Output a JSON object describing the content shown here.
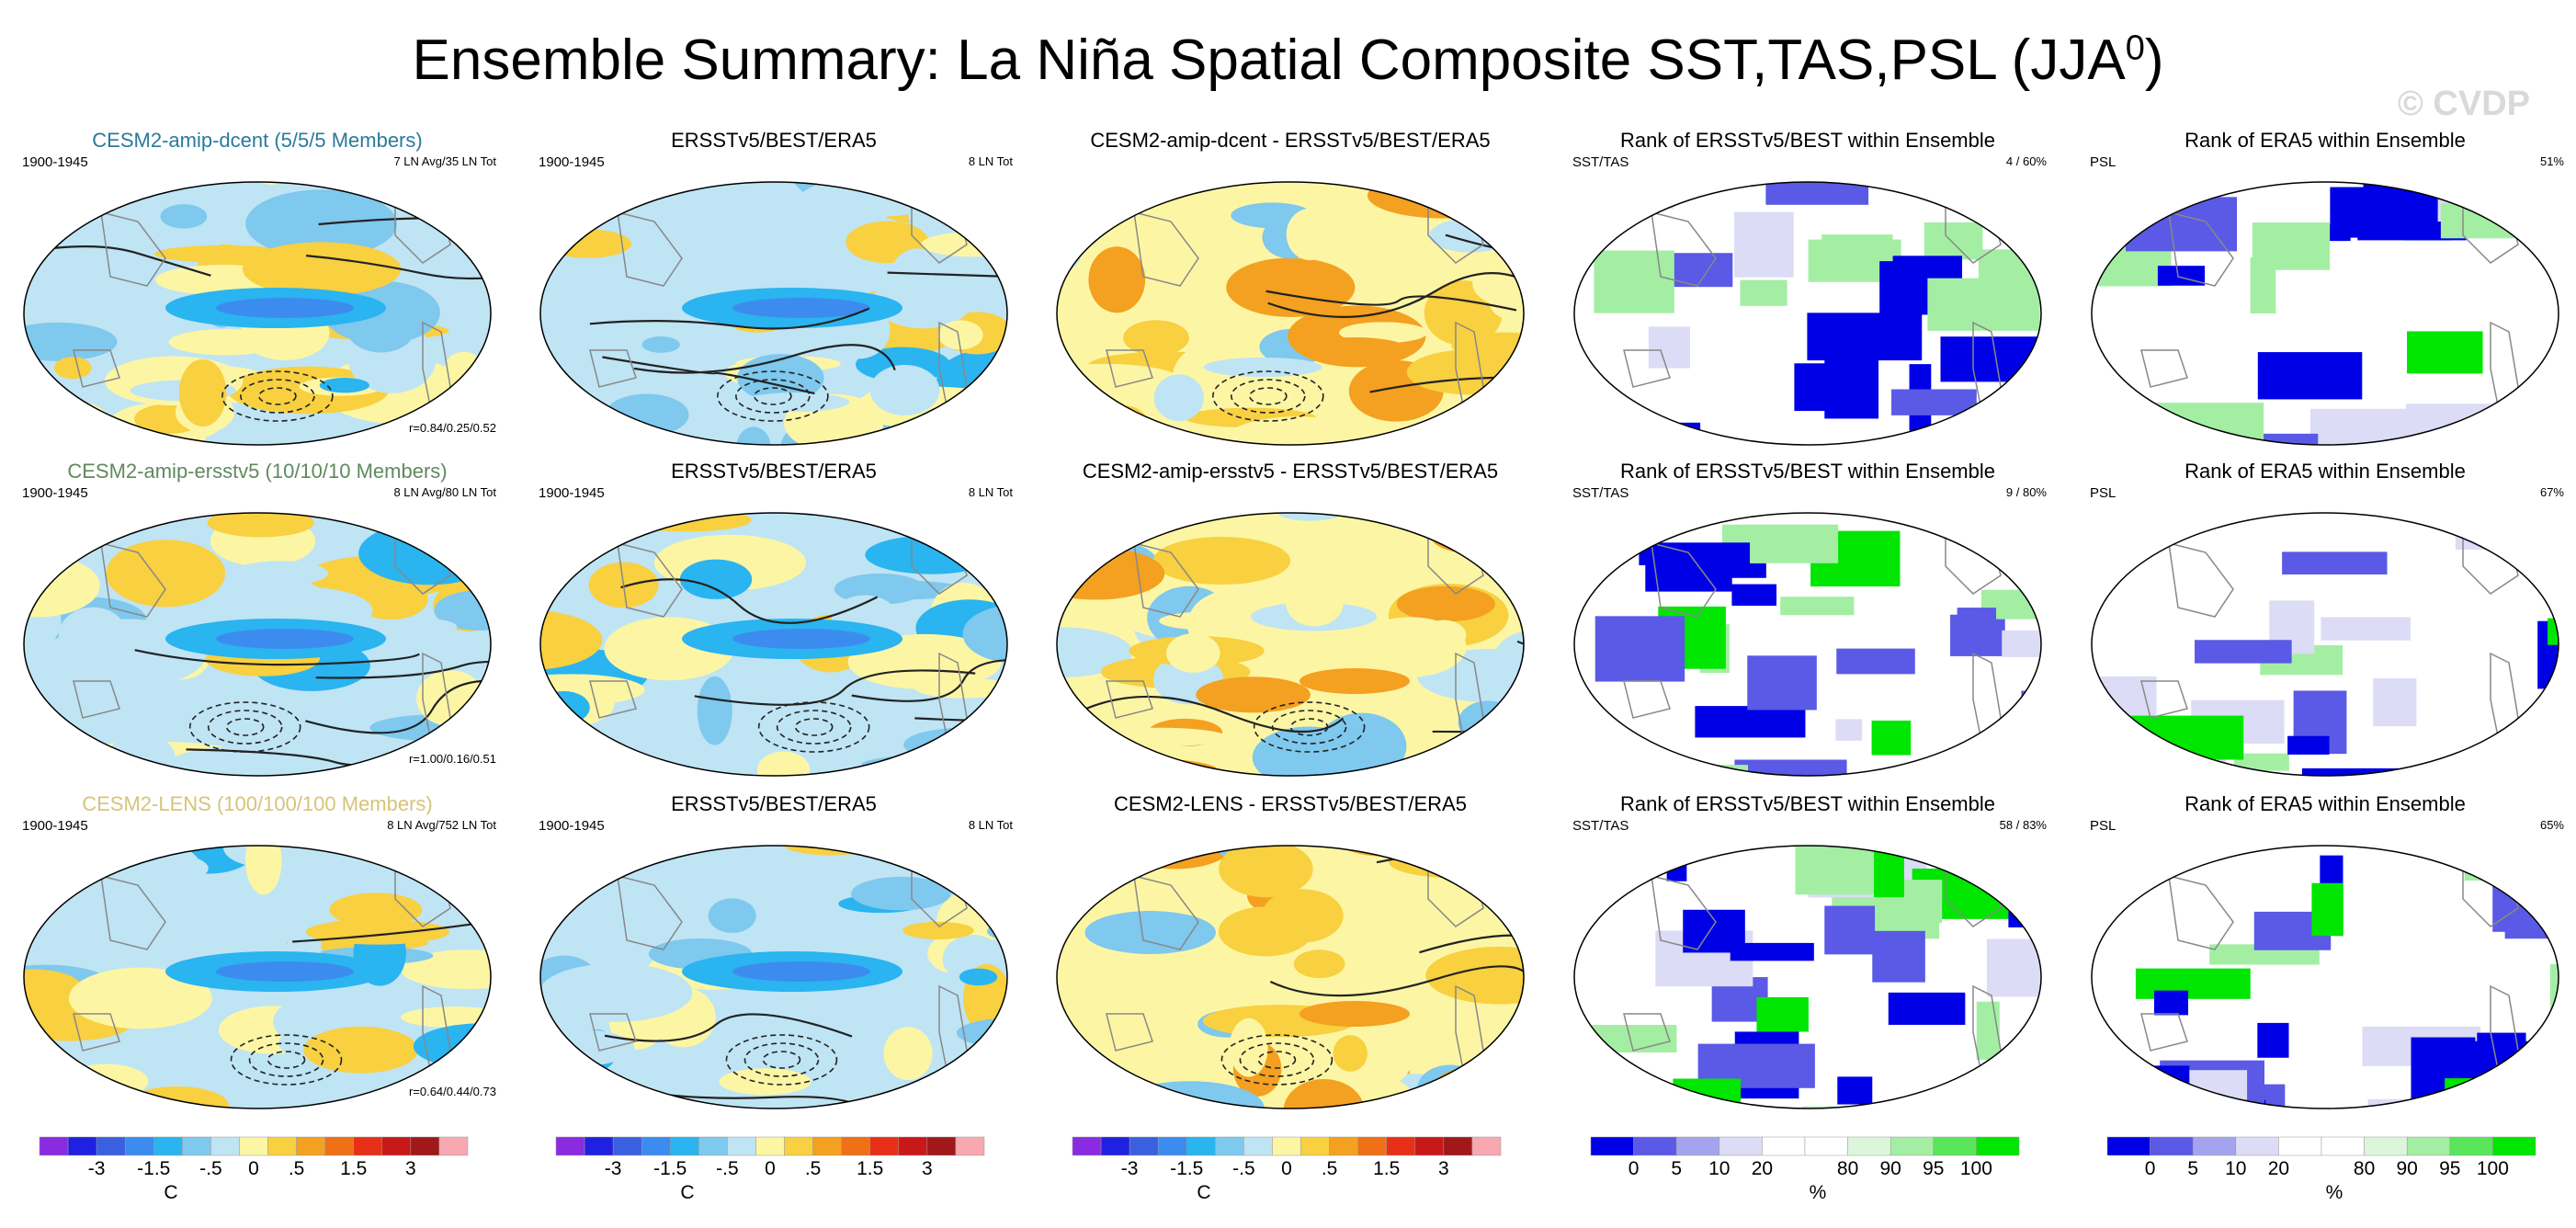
{
  "figure": {
    "title": "Ensemble Summary: La Niña Spatial Composite SST,TAS,PSL (JJA",
    "title_sup": "0",
    "title_close": ")",
    "watermark": "© CVDP"
  },
  "rows": [
    {
      "panels": [
        {
          "title": "CESM2-amip-dcent (5/5/5 Members)",
          "title_color": "#2b7a9b",
          "left": "1900-1945",
          "right": "7 LN Avg/35 LN Tot",
          "corr": "r=0.84/0.25/0.52",
          "kind": "anom",
          "pattern": 1
        },
        {
          "title": "ERSSTv5/BEST/ERA5",
          "title_color": "#000000",
          "left": "1900-1945",
          "right": "8 LN Tot",
          "corr": "",
          "kind": "anom",
          "pattern": 2
        },
        {
          "title": "CESM2-amip-dcent - ERSSTv5/BEST/ERA5",
          "title_color": "#000000",
          "left": "",
          "right": "",
          "corr": "",
          "kind": "diff",
          "pattern": 3
        },
        {
          "title": "Rank of ERSSTv5/BEST within Ensemble",
          "title_color": "#000000",
          "left": "SST/TAS",
          "right": "4 /  60%",
          "corr": "",
          "kind": "rank",
          "pattern": 4
        },
        {
          "title": "Rank of ERA5 within Ensemble",
          "title_color": "#000000",
          "left": "PSL",
          "right": "51%",
          "corr": "",
          "kind": "rank",
          "pattern": 5
        }
      ]
    },
    {
      "panels": [
        {
          "title": "CESM2-amip-ersstv5 (10/10/10 Members)",
          "title_color": "#5f8a5f",
          "left": "1900-1945",
          "right": "8 LN Avg/80 LN Tot",
          "corr": "r=1.00/0.16/0.51",
          "kind": "anom",
          "pattern": 6
        },
        {
          "title": "ERSSTv5/BEST/ERA5",
          "title_color": "#000000",
          "left": "1900-1945",
          "right": "8 LN Tot",
          "corr": "",
          "kind": "anom",
          "pattern": 7
        },
        {
          "title": "CESM2-amip-ersstv5 - ERSSTv5/BEST/ERA5",
          "title_color": "#000000",
          "left": "",
          "right": "",
          "corr": "",
          "kind": "diff",
          "pattern": 8
        },
        {
          "title": "Rank of ERSSTv5/BEST within Ensemble",
          "title_color": "#000000",
          "left": "SST/TAS",
          "right": "9 /  80%",
          "corr": "",
          "kind": "rank",
          "pattern": 9
        },
        {
          "title": "Rank of ERA5 within Ensemble",
          "title_color": "#000000",
          "left": "PSL",
          "right": "67%",
          "corr": "",
          "kind": "rank",
          "pattern": 10
        }
      ]
    },
    {
      "panels": [
        {
          "title": "CESM2-LENS (100/100/100 Members)",
          "title_color": "#d6c47a",
          "left": "1900-1945",
          "right": "8 LN Avg/752 LN Tot",
          "corr": "r=0.64/0.44/0.73",
          "kind": "anom",
          "pattern": 11
        },
        {
          "title": "ERSSTv5/BEST/ERA5",
          "title_color": "#000000",
          "left": "1900-1945",
          "right": "8 LN Tot",
          "corr": "",
          "kind": "anom",
          "pattern": 12
        },
        {
          "title": "CESM2-LENS - ERSSTv5/BEST/ERA5",
          "title_color": "#000000",
          "left": "",
          "right": "",
          "corr": "",
          "kind": "diff",
          "pattern": 13
        },
        {
          "title": "Rank of ERSSTv5/BEST within Ensemble",
          "title_color": "#000000",
          "left": "SST/TAS",
          "right": "58 /  83%",
          "corr": "",
          "kind": "rank",
          "pattern": 14
        },
        {
          "title": "Rank of ERA5 within Ensemble",
          "title_color": "#000000",
          "left": "PSL",
          "right": "65%",
          "corr": "",
          "kind": "rank",
          "pattern": 15
        }
      ]
    }
  ],
  "colorbars": {
    "anomaly": {
      "colors": [
        "#8a2be2",
        "#2020e0",
        "#3a5fe0",
        "#3c8cf0",
        "#2ab4f0",
        "#7fc8ee",
        "#bfe4f4",
        "#fcf6a4",
        "#f8d040",
        "#f4a020",
        "#f07018",
        "#e83018",
        "#c81818",
        "#a01818",
        "#f7a8b0"
      ],
      "ticks": [
        "-3",
        "-1.5",
        "-.5",
        "0",
        ".5",
        "1.5",
        "3"
      ],
      "unit": "C"
    },
    "rank": {
      "colors": [
        "#0000e6",
        "#5a5ae6",
        "#a4a4ee",
        "#dcdcf6",
        "#ffffff",
        "#ffffff",
        "#dcf6dc",
        "#a4eea4",
        "#5ae65a",
        "#00e600"
      ],
      "ticks": [
        "0",
        "5",
        "10",
        "20",
        "80",
        "90",
        "95",
        "100"
      ],
      "unit": "%"
    }
  },
  "colors": {
    "anom_land": "#ffffff",
    "rank_blue": "#0000e6",
    "rank_green": "#00e600",
    "rank_light": "#dcdcf6"
  }
}
